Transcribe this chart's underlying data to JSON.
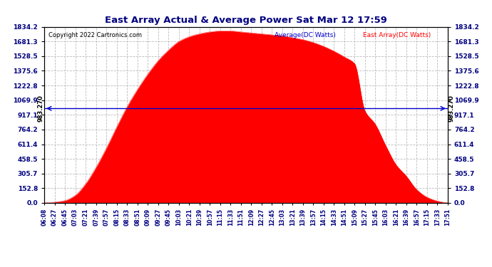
{
  "title": "East Array Actual & Average Power Sat Mar 12 17:59",
  "copyright": "Copyright 2022 Cartronics.com",
  "legend_average": "Average(DC Watts)",
  "legend_east": "East Array(DC Watts)",
  "average_value": 983.27,
  "ymax": 1834.2,
  "yticks": [
    0.0,
    152.8,
    305.7,
    458.5,
    611.4,
    764.2,
    917.1,
    1069.9,
    1222.8,
    1375.6,
    1528.5,
    1681.3,
    1834.2
  ],
  "background_color": "#ffffff",
  "fill_color": "#ff0000",
  "avg_line_color": "#0000cc",
  "grid_color": "#bbbbbb",
  "title_color": "#000080",
  "time_labels": [
    "06:08",
    "06:27",
    "06:45",
    "07:03",
    "07:21",
    "07:39",
    "07:57",
    "08:15",
    "08:33",
    "08:51",
    "09:09",
    "09:27",
    "09:45",
    "10:03",
    "10:21",
    "10:39",
    "10:57",
    "11:15",
    "11:33",
    "11:51",
    "12:09",
    "12:27",
    "12:45",
    "13:03",
    "13:21",
    "13:39",
    "13:57",
    "14:15",
    "14:33",
    "14:51",
    "15:09",
    "15:27",
    "15:45",
    "16:03",
    "16:21",
    "16:39",
    "16:57",
    "17:15",
    "17:33",
    "17:51"
  ],
  "power_values": [
    0,
    8,
    25,
    80,
    200,
    370,
    570,
    790,
    1000,
    1180,
    1340,
    1480,
    1590,
    1680,
    1730,
    1760,
    1780,
    1790,
    1790,
    1780,
    1770,
    1760,
    1750,
    1740,
    1720,
    1700,
    1670,
    1630,
    1580,
    1520,
    1450,
    960,
    820,
    600,
    400,
    280,
    140,
    60,
    20,
    0
  ]
}
